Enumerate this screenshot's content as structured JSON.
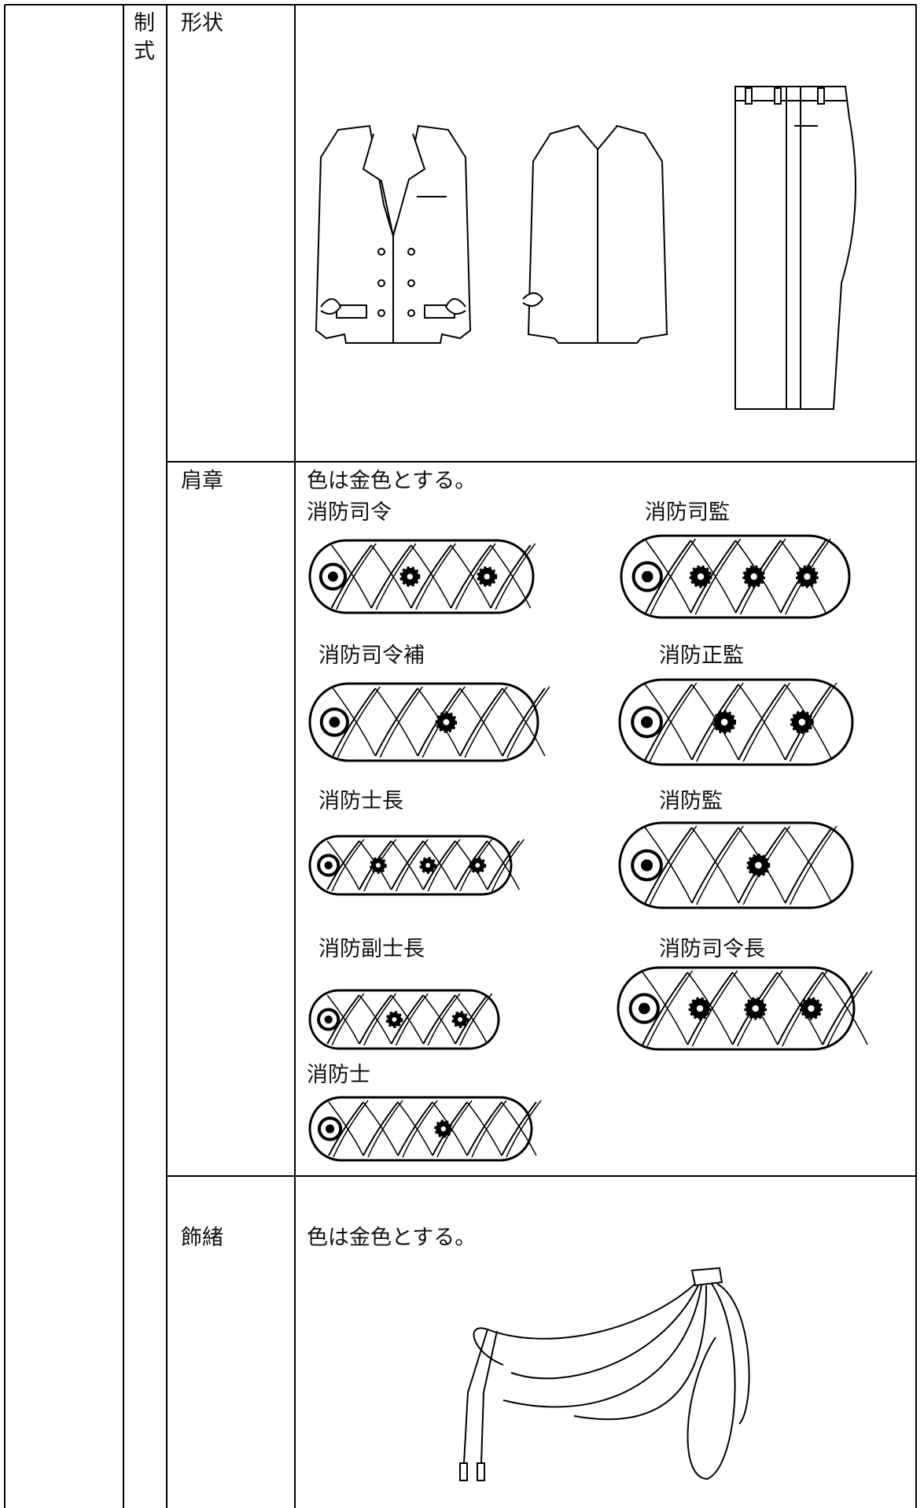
{
  "table": {
    "category": [
      "制",
      "式"
    ],
    "rows": [
      {
        "label": "形状"
      },
      {
        "label": "肩章",
        "note": "色は金色とする。",
        "ranks": [
          "消防司令",
          "消防司監",
          "消防司令補",
          "消防正監",
          "消防士長",
          "消防監",
          "消防副士長",
          "消防司令長",
          "消防士"
        ]
      },
      {
        "label": "飾緒",
        "note": "色は金色とする。"
      }
    ]
  }
}
